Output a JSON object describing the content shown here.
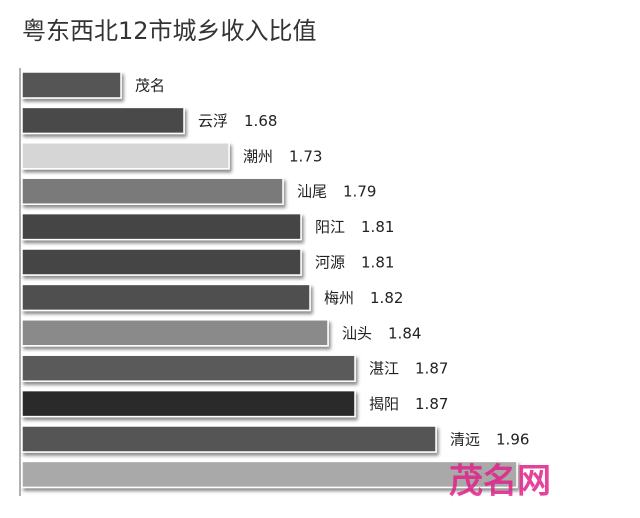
{
  "chart_data": {
    "type": "barh",
    "title": "粤东西北12市城乡收入比值",
    "categories": [
      "茂名",
      "云浮",
      "潮州",
      "汕尾",
      "阳江",
      "河源",
      "梅州",
      "汕头",
      "湛江",
      "揭阳",
      "清远",
      null
    ],
    "values": [
      1.61,
      1.68,
      1.73,
      1.79,
      1.81,
      1.81,
      1.82,
      1.84,
      1.87,
      1.87,
      1.96,
      2.05
    ],
    "value_labels": [
      null,
      "1.68",
      "1.73",
      "1.79",
      "1.81",
      "1.81",
      "1.82",
      "1.84",
      "1.87",
      "1.87",
      "1.96",
      null
    ],
    "colors": [
      "#545454",
      "#4a4a4a",
      "#d6d6d6",
      "#7a7a7a",
      "#454545",
      "#454545",
      "#4f4f4f",
      "#8a8a8a",
      "#5a5a5a",
      "#2a2a2a",
      "#555555",
      "#a9a9a9"
    ],
    "xlim": [
      1.5,
      2.18
    ],
    "watermark": "茂名网"
  }
}
